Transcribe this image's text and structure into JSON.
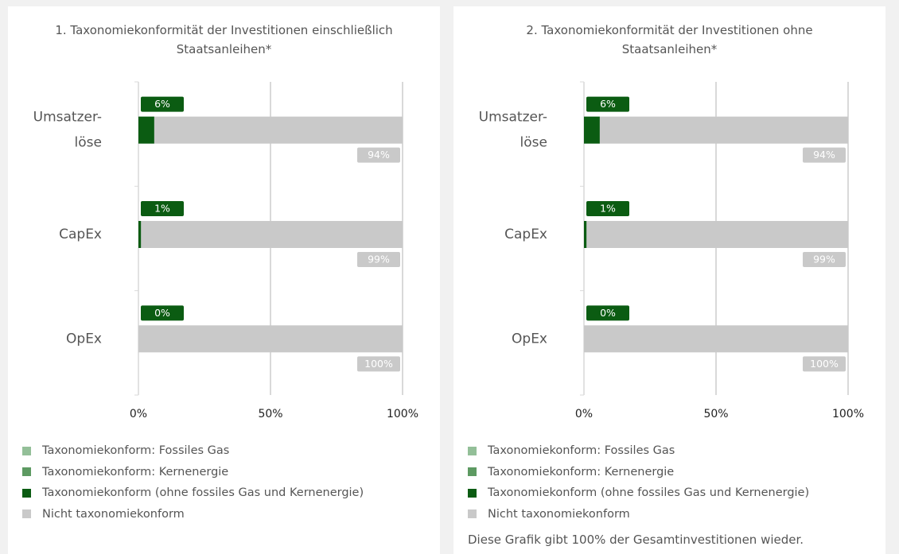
{
  "chart_data": [
    {
      "type": "bar",
      "orientation": "horizontal",
      "stacked": true,
      "title": "1. Taxonomiekonformität der Investitionen einschließlich Staatsanleihen*",
      "categories": [
        "Umsatzer-\nlöse",
        "CapEx",
        "OpEx"
      ],
      "series": [
        {
          "name": "Taxonomiekonform: Fossiles Gas",
          "color": "#93bf98",
          "values": [
            0,
            0,
            0
          ]
        },
        {
          "name": "Taxonomiekonform: Kernenergie",
          "color": "#5d9a62",
          "values": [
            0,
            0,
            0
          ]
        },
        {
          "name": "Taxonomiekonform (ohne fossiles Gas und Kernenergie)",
          "color": "#0b5c12",
          "values": [
            6,
            1,
            0
          ],
          "value_labels": [
            "6%",
            "1%",
            "0%"
          ]
        },
        {
          "name": "Nicht taxonomiekonform",
          "color": "#c9c9c9",
          "values": [
            94,
            99,
            100
          ],
          "value_labels": [
            "94%",
            "99%",
            "100%"
          ]
        }
      ],
      "xlim": [
        0,
        100
      ],
      "xticks": [
        {
          "value": 0,
          "label": "0%"
        },
        {
          "value": 50,
          "label": "50%"
        },
        {
          "value": 100,
          "label": "100%"
        }
      ],
      "grid": true
    },
    {
      "type": "bar",
      "orientation": "horizontal",
      "stacked": true,
      "title": "2. Taxonomiekonformität der Investitionen ohne Staatsanleihen*",
      "categories": [
        "Umsatzer-\nlöse",
        "CapEx",
        "OpEx"
      ],
      "series": [
        {
          "name": "Taxonomiekonform: Fossiles Gas",
          "color": "#93bf98",
          "values": [
            0,
            0,
            0
          ]
        },
        {
          "name": "Taxonomiekonform: Kernenergie",
          "color": "#5d9a62",
          "values": [
            0,
            0,
            0
          ]
        },
        {
          "name": "Taxonomiekonform (ohne fossiles Gas und Kernenergie)",
          "color": "#0b5c12",
          "values": [
            6,
            1,
            0
          ],
          "value_labels": [
            "6%",
            "1%",
            "0%"
          ]
        },
        {
          "name": "Nicht taxonomiekonform",
          "color": "#c9c9c9",
          "values": [
            94,
            99,
            100
          ],
          "value_labels": [
            "94%",
            "99%",
            "100%"
          ]
        }
      ],
      "xlim": [
        0,
        100
      ],
      "xticks": [
        {
          "value": 0,
          "label": "0%"
        },
        {
          "value": 50,
          "label": "50%"
        },
        {
          "value": 100,
          "label": "100%"
        }
      ],
      "grid": true,
      "note": "Diese Grafik gibt 100% der Gesamtinvestitionen wieder."
    }
  ]
}
